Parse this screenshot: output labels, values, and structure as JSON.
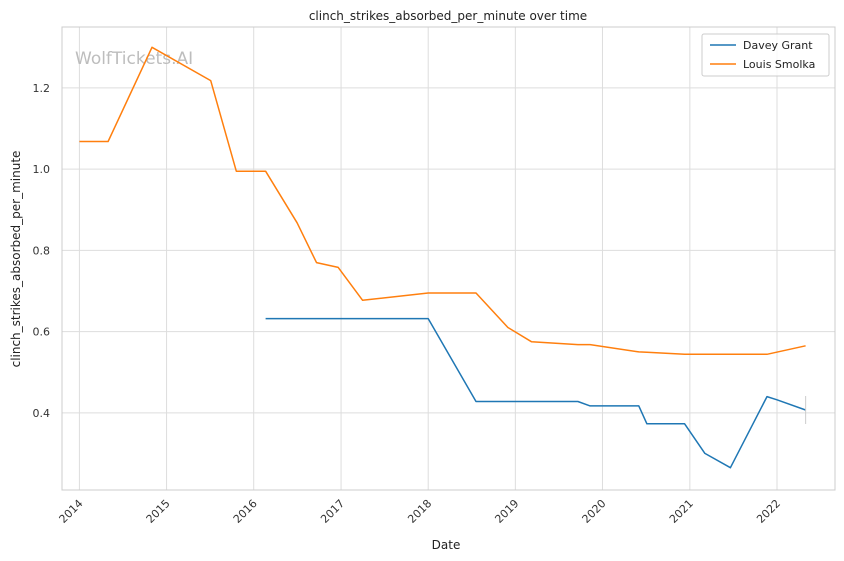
{
  "chart_data": {
    "type": "line",
    "title": "clinch_strikes_absorbed_per_minute over time",
    "xlabel": "Date",
    "ylabel": "clinch_strikes_absorbed_per_minute",
    "watermark": "WolfTickets.AI",
    "x_ticks": [
      "2014",
      "2015",
      "2016",
      "2017",
      "2018",
      "2019",
      "2020",
      "2021",
      "2022"
    ],
    "y_ticks": [
      "0.4",
      "0.6",
      "0.8",
      "1.0",
      "1.2"
    ],
    "xlim": [
      "2013-10-20",
      "2022-09-01"
    ],
    "ylim": [
      0.21,
      1.35
    ],
    "grid": true,
    "legend_position": "top-right",
    "series": [
      {
        "name": "Davey Grant",
        "color": "#1f77b4",
        "points": [
          [
            "2016-02-20",
            0.632
          ],
          [
            "2016-07-01",
            0.632
          ],
          [
            "2017-01-01",
            0.632
          ],
          [
            "2017-06-01",
            0.632
          ],
          [
            "2018-01-01",
            0.632
          ],
          [
            "2018-07-20",
            0.428
          ],
          [
            "2019-01-01",
            0.428
          ],
          [
            "2019-06-01",
            0.428
          ],
          [
            "2019-09-20",
            0.428
          ],
          [
            "2019-11-10",
            0.417
          ],
          [
            "2020-06-01",
            0.417
          ],
          [
            "2020-07-05",
            0.373
          ],
          [
            "2020-12-10",
            0.373
          ],
          [
            "2021-03-05",
            0.3
          ],
          [
            "2021-06-20",
            0.265
          ],
          [
            "2021-11-20",
            0.44
          ],
          [
            "2022-01-01",
            0.432
          ],
          [
            "2022-05-01",
            0.407
          ]
        ]
      },
      {
        "name": "Louis Smolka",
        "color": "#ff7f0e",
        "points": [
          [
            "2014-01-01",
            1.068
          ],
          [
            "2014-05-01",
            1.068
          ],
          [
            "2014-11-01",
            1.3
          ],
          [
            "2015-07-05",
            1.218
          ],
          [
            "2015-10-20",
            0.995
          ],
          [
            "2016-02-20",
            0.995
          ],
          [
            "2016-07-01",
            0.868
          ],
          [
            "2016-09-20",
            0.77
          ],
          [
            "2016-12-20",
            0.758
          ],
          [
            "2017-04-01",
            0.677
          ],
          [
            "2018-01-01",
            0.695
          ],
          [
            "2018-07-20",
            0.695
          ],
          [
            "2018-12-01",
            0.61
          ],
          [
            "2019-03-10",
            0.575
          ],
          [
            "2019-09-20",
            0.568
          ],
          [
            "2019-11-10",
            0.568
          ],
          [
            "2020-06-01",
            0.55
          ],
          [
            "2020-07-05",
            0.549
          ],
          [
            "2020-12-10",
            0.544
          ],
          [
            "2021-11-20",
            0.544
          ],
          [
            "2022-05-01",
            0.565
          ]
        ]
      }
    ]
  }
}
